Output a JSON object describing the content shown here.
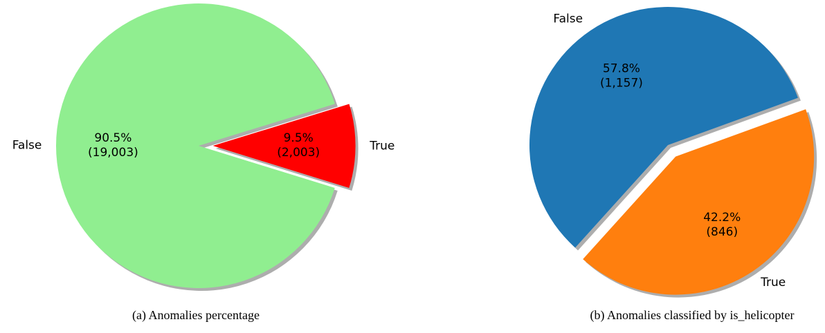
{
  "chart_data": [
    {
      "type": "pie",
      "categories": [
        "False",
        "True"
      ],
      "values": [
        19003,
        2003
      ],
      "value_labels": [
        "(19,003)",
        "(2,003)"
      ],
      "percent_labels": [
        "90.5%",
        "9.5%"
      ],
      "colors": [
        "#90ee90",
        "#ff0000"
      ],
      "startangle": 17.1,
      "explode": [
        0,
        0.1
      ],
      "shadow": true,
      "caption": "(a)   Anomalies percentage"
    },
    {
      "type": "pie",
      "categories": [
        "False",
        "True"
      ],
      "values": [
        1157,
        846
      ],
      "value_labels": [
        "(1,157)",
        "(846)"
      ],
      "percent_labels": [
        "57.8%",
        "42.2%"
      ],
      "colors": [
        "#1f77b4",
        "#ff7f0e"
      ],
      "startangle": 20,
      "explode": [
        0,
        0.1
      ],
      "shadow": true,
      "caption": "(b) Anomalies classified by is_helicopter"
    }
  ]
}
